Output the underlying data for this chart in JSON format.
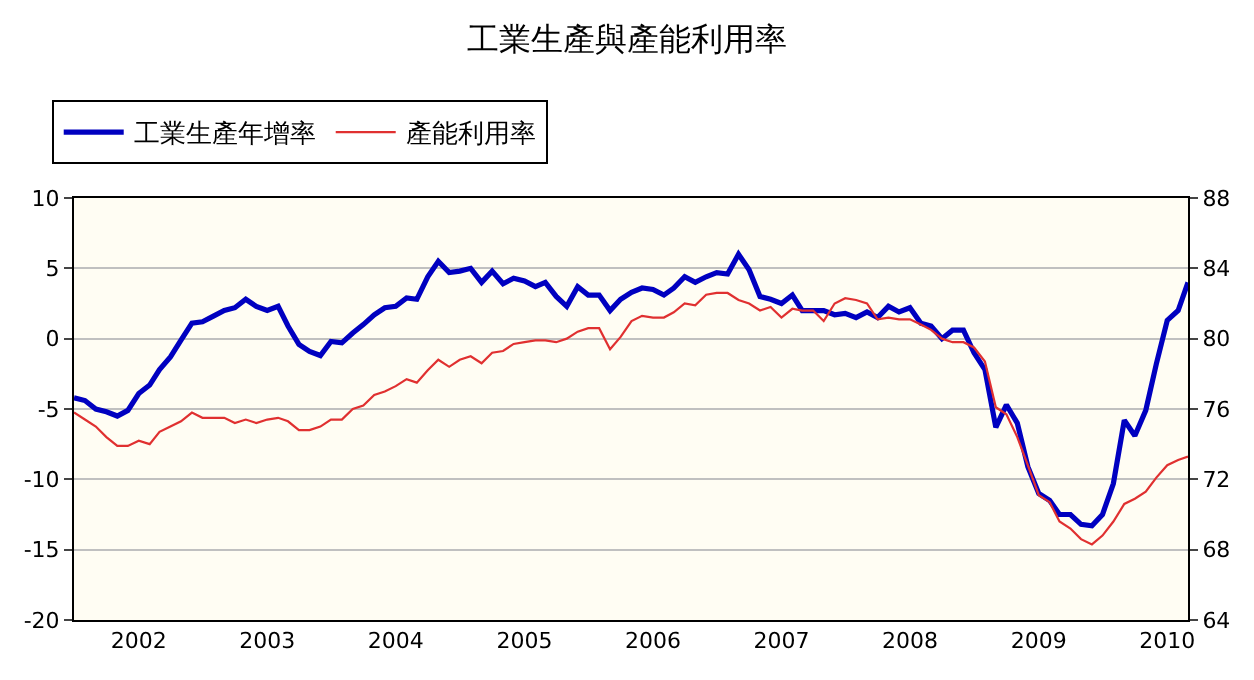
{
  "chart_data": {
    "type": "line",
    "title": "工業生產與產能利用率",
    "x": [
      "2001-07",
      "2001-08",
      "2001-09",
      "2001-10",
      "2001-11",
      "2001-12",
      "2002-01",
      "2002-02",
      "2002-03",
      "2002-04",
      "2002-05",
      "2002-06",
      "2002-07",
      "2002-08",
      "2002-09",
      "2002-10",
      "2002-11",
      "2002-12",
      "2003-01",
      "2003-02",
      "2003-03",
      "2003-04",
      "2003-05",
      "2003-06",
      "2003-07",
      "2003-08",
      "2003-09",
      "2003-10",
      "2003-11",
      "2003-12",
      "2004-01",
      "2004-02",
      "2004-03",
      "2004-04",
      "2004-05",
      "2004-06",
      "2004-07",
      "2004-08",
      "2004-09",
      "2004-10",
      "2004-11",
      "2004-12",
      "2005-01",
      "2005-02",
      "2005-03",
      "2005-04",
      "2005-05",
      "2005-06",
      "2005-07",
      "2005-08",
      "2005-09",
      "2005-10",
      "2005-11",
      "2005-12",
      "2006-01",
      "2006-02",
      "2006-03",
      "2006-04",
      "2006-05",
      "2006-06",
      "2006-07",
      "2006-08",
      "2006-09",
      "2006-10",
      "2006-11",
      "2006-12",
      "2007-01",
      "2007-02",
      "2007-03",
      "2007-04",
      "2007-05",
      "2007-06",
      "2007-07",
      "2007-08",
      "2007-09",
      "2007-10",
      "2007-11",
      "2007-12",
      "2008-01",
      "2008-02",
      "2008-03",
      "2008-04",
      "2008-05",
      "2008-06",
      "2008-07",
      "2008-08",
      "2008-09",
      "2008-10",
      "2008-11",
      "2008-12",
      "2009-01",
      "2009-02",
      "2009-03",
      "2009-04",
      "2009-05",
      "2009-06",
      "2009-07",
      "2009-08",
      "2009-09",
      "2009-10",
      "2009-11",
      "2009-12",
      "2010-01",
      "2010-02",
      "2010-03"
    ],
    "series": [
      {
        "name": "工業生產年增率",
        "color": "#0000c0",
        "values": [
          -4.2,
          -4.4,
          -5.0,
          -5.2,
          -5.5,
          -5.1,
          -3.9,
          -3.3,
          -2.2,
          -1.3,
          -0.1,
          1.1,
          1.2,
          1.6,
          2.0,
          2.2,
          2.8,
          2.3,
          2.0,
          2.3,
          0.9,
          -0.4,
          -0.9,
          -1.2,
          -0.2,
          -0.3,
          0.4,
          1.0,
          1.7,
          2.2,
          2.3,
          2.9,
          2.8,
          4.4,
          5.5,
          4.7,
          4.8,
          5.0,
          4.0,
          4.8,
          3.9,
          4.3,
          4.1,
          3.7,
          4.0,
          3.0,
          2.3,
          3.7,
          3.1,
          3.1,
          2.0,
          2.8,
          3.3,
          3.6,
          3.5,
          3.1,
          3.6,
          4.4,
          4.0,
          4.4,
          4.7,
          4.6,
          6.0,
          4.9,
          3.0,
          2.8,
          2.5,
          3.1,
          2.0,
          2.0,
          2.0,
          1.7,
          1.8,
          1.5,
          1.9,
          1.5,
          2.3,
          1.9,
          2.2,
          1.1,
          0.9,
          0.0,
          0.6,
          0.6,
          -1.0,
          -2.2,
          -6.3,
          -4.7,
          -6.0,
          -9.1,
          -11.0,
          -11.5,
          -12.5,
          -12.5,
          -13.2,
          -13.3,
          -12.5,
          -10.3,
          -5.8,
          -6.9,
          -5.1,
          -1.8,
          1.3,
          2.0,
          4.0
        ]
      },
      {
        "name": "產能利用率",
        "color": "#e03030",
        "axis": "y2",
        "values": [
          75.8,
          75.4,
          75.0,
          74.4,
          73.9,
          73.9,
          74.2,
          74.0,
          74.7,
          75.0,
          75.3,
          75.8,
          75.5,
          75.5,
          75.5,
          75.2,
          75.4,
          75.2,
          75.4,
          75.5,
          75.3,
          74.8,
          74.8,
          75.0,
          75.4,
          75.4,
          76.0,
          76.2,
          76.8,
          77.0,
          77.3,
          77.7,
          77.5,
          78.2,
          78.8,
          78.4,
          78.8,
          79.0,
          78.6,
          79.2,
          79.3,
          79.7,
          79.8,
          79.9,
          79.9,
          79.8,
          80.0,
          80.4,
          80.6,
          80.6,
          79.4,
          80.1,
          81.0,
          81.3,
          81.2,
          81.2,
          81.5,
          82.0,
          81.9,
          82.5,
          82.6,
          82.6,
          82.2,
          82.0,
          81.6,
          81.8,
          81.2,
          81.7,
          81.6,
          81.6,
          81.0,
          82.0,
          82.3,
          82.2,
          82.0,
          81.1,
          81.2,
          81.1,
          81.1,
          80.8,
          80.5,
          80.0,
          79.8,
          79.8,
          79.5,
          78.7,
          76.1,
          75.7,
          74.4,
          72.8,
          71.1,
          70.7,
          69.6,
          69.2,
          68.6,
          68.3,
          68.8,
          69.6,
          70.6,
          70.9,
          71.3,
          72.1,
          72.8,
          73.1,
          73.3
        ]
      }
    ],
    "xlim": [
      "2001-07",
      "2010-03"
    ],
    "xticks": [
      "2002",
      "2003",
      "2004",
      "2005",
      "2006",
      "2007",
      "2008",
      "2009",
      "2010"
    ],
    "ylim": [
      -20,
      10
    ],
    "yticks": [
      -20,
      -15,
      -10,
      -5,
      0,
      5,
      10
    ],
    "y2lim": [
      64,
      88
    ],
    "y2ticks": [
      64,
      68,
      72,
      76,
      80,
      84,
      88
    ],
    "grid": "y",
    "legend": "top left",
    "marker": "none",
    "line_style": "solid"
  }
}
